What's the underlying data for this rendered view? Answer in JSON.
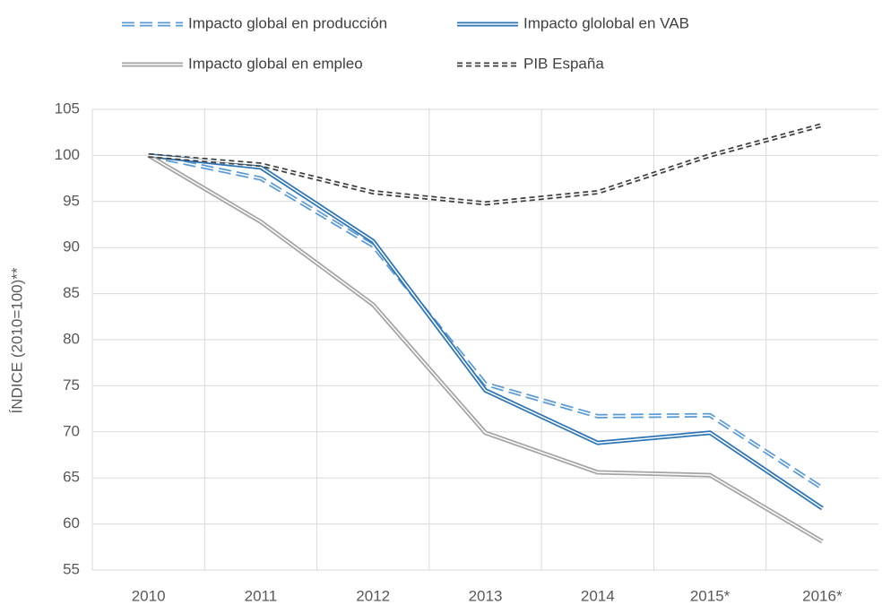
{
  "chart_data": {
    "type": "line",
    "y_label": "ÍNDICE (2010=100)**",
    "categories": [
      "2010",
      "2011",
      "2012",
      "2013",
      "2014",
      "2015*",
      "2016*"
    ],
    "series": [
      {
        "name": "Impacto global en producción",
        "color": "#5b9bd5",
        "line_style": "dashed",
        "values": [
          100,
          97.5,
          90.2,
          75.2,
          71.7,
          71.8,
          63.9
        ]
      },
      {
        "name": "Impacto glolobal en VAB",
        "color": "#2e75b6",
        "line_style": "solid",
        "values": [
          100,
          98.7,
          90.7,
          74.5,
          68.8,
          69.9,
          61.7
        ]
      },
      {
        "name": "Impacto global en empleo",
        "color": "#a5a5a5",
        "line_style": "solid",
        "values": [
          100,
          92.8,
          83.8,
          69.9,
          65.6,
          65.3,
          58.1
        ]
      },
      {
        "name": "PIB España",
        "color": "#404040",
        "line_style": "dotted",
        "values": [
          100,
          99.0,
          96.0,
          94.8,
          96.0,
          100.0,
          103.3
        ]
      }
    ],
    "ylim": [
      55,
      105
    ],
    "yticks": [
      55,
      60,
      65,
      70,
      75,
      80,
      85,
      90,
      95,
      100,
      105
    ],
    "grid": true,
    "legend": "top"
  }
}
